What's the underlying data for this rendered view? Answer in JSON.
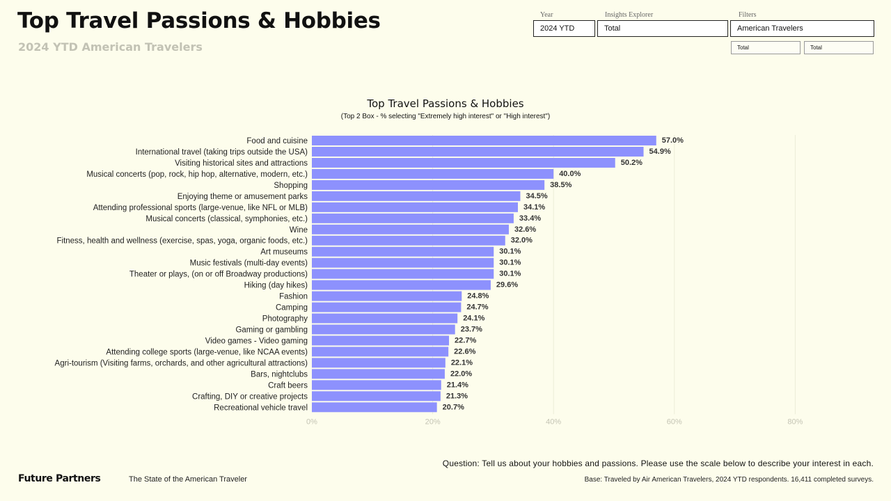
{
  "header": {
    "title": "Top Travel Passions & Hobbies",
    "subtitle": "2024 YTD American Travelers"
  },
  "filters": {
    "year_label": "Year",
    "year_value": "2024 YTD",
    "explorer_label": "Insights Explorer",
    "explorer_value": "Total",
    "filters_label": "Filters",
    "filters_value": "American Travelers",
    "sub_filter_1": "Total",
    "sub_filter_2": "Total"
  },
  "chart_data": {
    "type": "bar",
    "orientation": "horizontal",
    "title": "Top Travel Passions & Hobbies",
    "subtitle": "(Top 2 Box - % selecting \"Extremely high interest\" or \"High interest\")",
    "categories": [
      "Food and cuisine",
      "International travel (taking trips outside the USA)",
      "Visiting historical sites and attractions",
      "Musical concerts (pop, rock, hip hop, alternative, modern, etc.)",
      "Shopping",
      "Enjoying theme or amusement parks",
      "Attending professional sports (large-venue, like NFL or MLB)",
      "Musical concerts (classical, symphonies, etc.)",
      "Wine",
      "Fitness, health and wellness (exercise, spas, yoga, organic foods, etc.)",
      "Art museums",
      "Music festivals (multi-day events)",
      "Theater or plays, (on or off Broadway productions)",
      "Hiking (day hikes)",
      "Fashion",
      "Camping",
      "Photography",
      "Gaming or gambling",
      "Video games - Video gaming",
      "Attending college sports (large-venue, like NCAA events)",
      "Agri-tourism (Visiting farms, orchards, and other agricultural attractions)",
      "Bars, nightclubs",
      "Craft beers",
      "Crafting, DIY or creative projects",
      "Recreational vehicle travel"
    ],
    "values": [
      57.0,
      54.9,
      50.2,
      40.0,
      38.5,
      34.5,
      34.1,
      33.4,
      32.6,
      32.0,
      30.1,
      30.1,
      30.1,
      29.6,
      24.8,
      24.7,
      24.1,
      23.7,
      22.7,
      22.6,
      22.1,
      22.0,
      21.4,
      21.3,
      20.7
    ],
    "value_labels": [
      "57.0%",
      "54.9%",
      "50.2%",
      "40.0%",
      "38.5%",
      "34.5%",
      "34.1%",
      "33.4%",
      "32.6%",
      "32.0%",
      "30.1%",
      "30.1%",
      "30.1%",
      "29.6%",
      "24.8%",
      "24.7%",
      "24.1%",
      "23.7%",
      "22.7%",
      "22.6%",
      "22.1%",
      "22.0%",
      "21.4%",
      "21.3%",
      "20.7%"
    ],
    "xticks": [
      "0%",
      "20%",
      "40%",
      "60%",
      "80%"
    ],
    "xlim": [
      0,
      80
    ],
    "grid": true,
    "bar_color": "#8d91fd"
  },
  "footer": {
    "brand": "Future Partners",
    "report": "The State of the American Traveler",
    "question": "Question: Tell us about your hobbies and passions. Please use the scale below to describe your interest in each.",
    "base": "Base: Traveled by Air American Travelers, 2024 YTD respondents. 16,411 completed surveys."
  }
}
